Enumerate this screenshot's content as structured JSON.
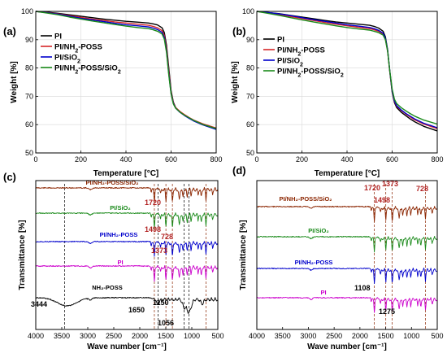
{
  "chart_data": [
    {
      "panel": "(a)",
      "type": "line",
      "xlabel": "Temperature [°C]",
      "ylabel": "Weight [%]",
      "xlim": [
        0,
        800
      ],
      "ylim": [
        50,
        100
      ],
      "xticks": [
        0,
        200,
        400,
        600,
        800
      ],
      "yticks": [
        50,
        60,
        70,
        80,
        90,
        100
      ],
      "grid": true,
      "legend": "top-left",
      "series": [
        {
          "name": "PI",
          "color": "#000000",
          "x": [
            0,
            50,
            100,
            150,
            200,
            250,
            300,
            350,
            400,
            450,
            500,
            520,
            540,
            560,
            570,
            580,
            590,
            600,
            610,
            620,
            640,
            660,
            680,
            700,
            740,
            800
          ],
          "y": [
            100,
            99.7,
            99.3,
            98.8,
            98.3,
            97.8,
            97.3,
            96.9,
            96.5,
            96.2,
            95.9,
            95.6,
            95.2,
            94.2,
            92.5,
            88,
            80,
            72,
            68,
            66,
            64.5,
            63.3,
            62.3,
            61.4,
            60,
            58.5
          ]
        },
        {
          "name": "PI/NH2-POSS",
          "color": "#d62728",
          "x": [
            0,
            50,
            100,
            150,
            200,
            250,
            300,
            350,
            400,
            450,
            500,
            520,
            540,
            560,
            570,
            580,
            590,
            600,
            610,
            620,
            640,
            660,
            680,
            700,
            740,
            800
          ],
          "y": [
            100,
            99.6,
            99.1,
            98.5,
            97.9,
            97.3,
            96.8,
            96.3,
            95.9,
            95.5,
            95.1,
            94.7,
            94.2,
            93.2,
            91.5,
            87,
            79,
            71.5,
            67.8,
            66,
            64.6,
            63.5,
            62.5,
            61.6,
            60.3,
            58.8
          ]
        },
        {
          "name": "PI/SiO2",
          "color": "#0000cc",
          "x": [
            0,
            50,
            100,
            150,
            200,
            250,
            300,
            350,
            400,
            450,
            500,
            520,
            540,
            560,
            570,
            580,
            590,
            600,
            610,
            620,
            640,
            660,
            680,
            700,
            740,
            800
          ],
          "y": [
            100,
            99.5,
            99,
            98.3,
            97.6,
            97,
            96.4,
            95.8,
            95.3,
            94.9,
            94.5,
            94.1,
            93.6,
            92.6,
            90.8,
            86,
            78,
            71,
            67.5,
            65.8,
            64.3,
            63.2,
            62.2,
            61.3,
            59.9,
            58.3
          ]
        },
        {
          "name": "PI/NH2-POSS/SiO2",
          "color": "#1a8a1a",
          "x": [
            0,
            50,
            100,
            150,
            200,
            250,
            300,
            350,
            400,
            450,
            500,
            520,
            540,
            560,
            570,
            580,
            590,
            600,
            610,
            620,
            640,
            660,
            680,
            700,
            740,
            800
          ],
          "y": [
            100,
            99.4,
            98.8,
            98,
            97.3,
            96.6,
            96,
            95.4,
            94.8,
            94.3,
            93.9,
            93.5,
            93,
            92,
            90.2,
            85.5,
            77.5,
            70.8,
            67.3,
            65.8,
            64.4,
            63.3,
            62.4,
            61.5,
            60.1,
            58.6
          ]
        }
      ]
    },
    {
      "panel": "(b)",
      "type": "line",
      "xlabel": "Temperature [°C]",
      "ylabel": "Weight [%]",
      "xlim": [
        0,
        800
      ],
      "ylim": [
        50,
        100
      ],
      "xticks": [
        0,
        200,
        400,
        600,
        800
      ],
      "yticks": [
        50,
        60,
        70,
        80,
        90,
        100
      ],
      "grid": true,
      "legend": "top-left",
      "series": [
        {
          "name": "PI",
          "color": "#000000",
          "x": [
            0,
            50,
            100,
            150,
            200,
            250,
            300,
            350,
            400,
            450,
            500,
            520,
            540,
            560,
            570,
            580,
            590,
            600,
            610,
            620,
            640,
            660,
            680,
            700,
            740,
            800
          ],
          "y": [
            100,
            99.6,
            99.2,
            98.6,
            98,
            97.4,
            96.8,
            96.3,
            95.9,
            95.5,
            95.1,
            94.7,
            94.1,
            93,
            91,
            86.5,
            78.5,
            71.5,
            67.8,
            66,
            64.4,
            63.2,
            62,
            61,
            59.4,
            57.8
          ]
        },
        {
          "name": "PI/NH2-POSS",
          "color": "#d62728",
          "x": [
            0,
            50,
            100,
            150,
            200,
            250,
            300,
            350,
            400,
            450,
            500,
            520,
            540,
            560,
            570,
            580,
            590,
            600,
            610,
            620,
            640,
            660,
            680,
            700,
            740,
            800
          ],
          "y": [
            100,
            99.5,
            98.9,
            98.2,
            97.5,
            96.8,
            96.1,
            95.5,
            94.9,
            94.4,
            93.9,
            93.5,
            93,
            92,
            90.2,
            86,
            78.5,
            71.8,
            68.2,
            66.5,
            65,
            63.8,
            62.7,
            61.7,
            60.2,
            58.6
          ]
        },
        {
          "name": "PI/SiO2",
          "color": "#0000cc",
          "x": [
            0,
            50,
            100,
            150,
            200,
            250,
            300,
            350,
            400,
            450,
            500,
            520,
            540,
            560,
            570,
            580,
            590,
            600,
            610,
            620,
            640,
            660,
            680,
            700,
            740,
            800
          ],
          "y": [
            100,
            99.6,
            99.1,
            98.5,
            97.8,
            97.1,
            96.5,
            95.9,
            95.3,
            94.8,
            94.3,
            93.9,
            93.3,
            92.3,
            90.5,
            86.3,
            78.8,
            72,
            68.4,
            66.7,
            65.2,
            64,
            63,
            62,
            60.5,
            58.9
          ]
        },
        {
          "name": "PI/NH2-POSS/SiO2",
          "color": "#1a8a1a",
          "x": [
            0,
            50,
            100,
            150,
            200,
            250,
            300,
            350,
            400,
            450,
            500,
            520,
            540,
            560,
            570,
            580,
            590,
            600,
            610,
            620,
            640,
            660,
            680,
            700,
            740,
            800
          ],
          "y": [
            100,
            99.3,
            98.6,
            97.8,
            97,
            96.3,
            95.6,
            94.9,
            94.3,
            93.8,
            93.4,
            93,
            92.5,
            91.6,
            90,
            86,
            78.8,
            72.6,
            69,
            67.4,
            66,
            64.9,
            63.9,
            63,
            61.6,
            60.2
          ]
        }
      ]
    },
    {
      "panel": "(c)",
      "type": "line",
      "xlabel": "Wave number [cm⁻¹]",
      "ylabel": "Transmittance [%]",
      "xlim": [
        4000,
        500
      ],
      "xticks": [
        4000,
        3500,
        3000,
        2500,
        2000,
        1500,
        1000,
        500
      ],
      "grid": false,
      "spectra": [
        {
          "label": "PI/NH₂-POSS/SiO₂",
          "color": "#8b2500"
        },
        {
          "label": "PI/SiO₂",
          "color": "#1a8a1a"
        },
        {
          "label": "PI/NH₂-POSS",
          "color": "#0000cc"
        },
        {
          "label": "PI",
          "color": "#cc00cc"
        },
        {
          "label": "NH₂-POSS",
          "color": "#000000"
        }
      ],
      "vlines": [
        {
          "x": 3444,
          "color": "#000000"
        },
        {
          "x": 1720,
          "color": "#8b2500"
        },
        {
          "x": 1650,
          "color": "#000000"
        },
        {
          "x": 1498,
          "color": "#8b2500"
        },
        {
          "x": 1373,
          "color": "#8b2500"
        },
        {
          "x": 1150,
          "color": "#000000"
        },
        {
          "x": 1056,
          "color": "#000000"
        },
        {
          "x": 728,
          "color": "#8b2500"
        }
      ],
      "annotations": [
        {
          "text": "3444",
          "color": "#000000"
        },
        {
          "text": "1720",
          "color": "#b22222"
        },
        {
          "text": "1498",
          "color": "#b22222"
        },
        {
          "text": "1373",
          "color": "#b22222"
        },
        {
          "text": "728",
          "color": "#b22222"
        },
        {
          "text": "1650",
          "color": "#000000"
        },
        {
          "text": "1150",
          "color": "#000000"
        },
        {
          "text": "1056",
          "color": "#000000"
        }
      ]
    },
    {
      "panel": "(d)",
      "type": "line",
      "xlabel": "Wave number [cm⁻¹]",
      "ylabel": "Transmittance [%]",
      "xlim": [
        4000,
        500
      ],
      "xticks": [
        4000,
        3500,
        3000,
        2500,
        2000,
        1500,
        1000,
        500
      ],
      "grid": false,
      "spectra": [
        {
          "label": "PI/NH₂-POSS/SiO₂",
          "color": "#8b2500"
        },
        {
          "label": "PI/SiO₂",
          "color": "#1a8a1a"
        },
        {
          "label": "PI/NH₂-POSS",
          "color": "#0000cc"
        },
        {
          "label": "PI",
          "color": "#cc00cc"
        }
      ],
      "vlines": [
        {
          "x": 1720,
          "color": "#8b2500"
        },
        {
          "x": 1498,
          "color": "#8b2500"
        },
        {
          "x": 1373,
          "color": "#8b2500"
        },
        {
          "x": 728,
          "color": "#8b2500"
        }
      ],
      "annotations": [
        {
          "text": "1720",
          "color": "#b22222"
        },
        {
          "text": "1373",
          "color": "#b22222"
        },
        {
          "text": "1498",
          "color": "#b22222"
        },
        {
          "text": "728",
          "color": "#b22222"
        },
        {
          "text": "1108",
          "color": "#000000"
        },
        {
          "text": "1275",
          "color": "#000000"
        }
      ]
    }
  ]
}
